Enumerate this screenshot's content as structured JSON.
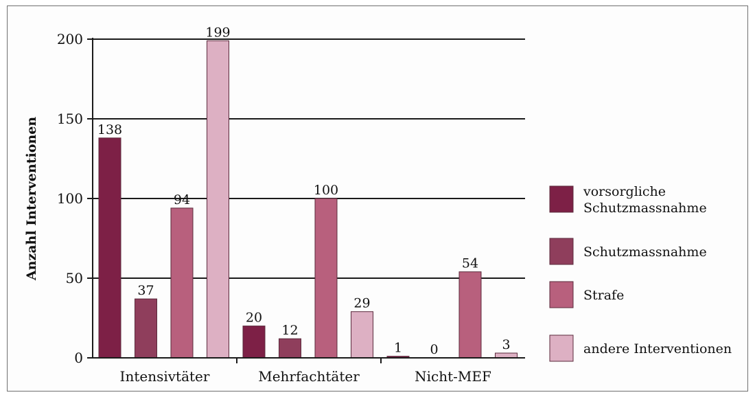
{
  "chart_data": {
    "type": "bar",
    "title": "",
    "xlabel": "",
    "ylabel": "Anzahl Interventionen",
    "ylim": [
      0,
      200
    ],
    "yticks": [
      0,
      50,
      100,
      150,
      200
    ],
    "grid": true,
    "legend_position": "right",
    "categories": [
      "Intensivtäter",
      "Mehrfachtäter",
      "Nicht-MEF"
    ],
    "series": [
      {
        "name": "vorsorgliche Schutzmassnahme",
        "color": "#7d2046",
        "values": [
          138,
          20,
          1
        ]
      },
      {
        "name": "Schutzmassnahme",
        "color": "#8f3e5c",
        "values": [
          37,
          12,
          0
        ]
      },
      {
        "name": "Strafe",
        "color": "#b8607d",
        "values": [
          94,
          100,
          54
        ]
      },
      {
        "name": "andere Interventionen",
        "color": "#ddb0c3",
        "values": [
          199,
          29,
          3
        ]
      }
    ],
    "legend_lines": [
      [
        "vorsorgliche",
        "Schutzmassnahme"
      ],
      [
        "Schutzmassnahme"
      ],
      [
        "Strafe"
      ],
      [
        "andere Interventionen"
      ]
    ]
  }
}
